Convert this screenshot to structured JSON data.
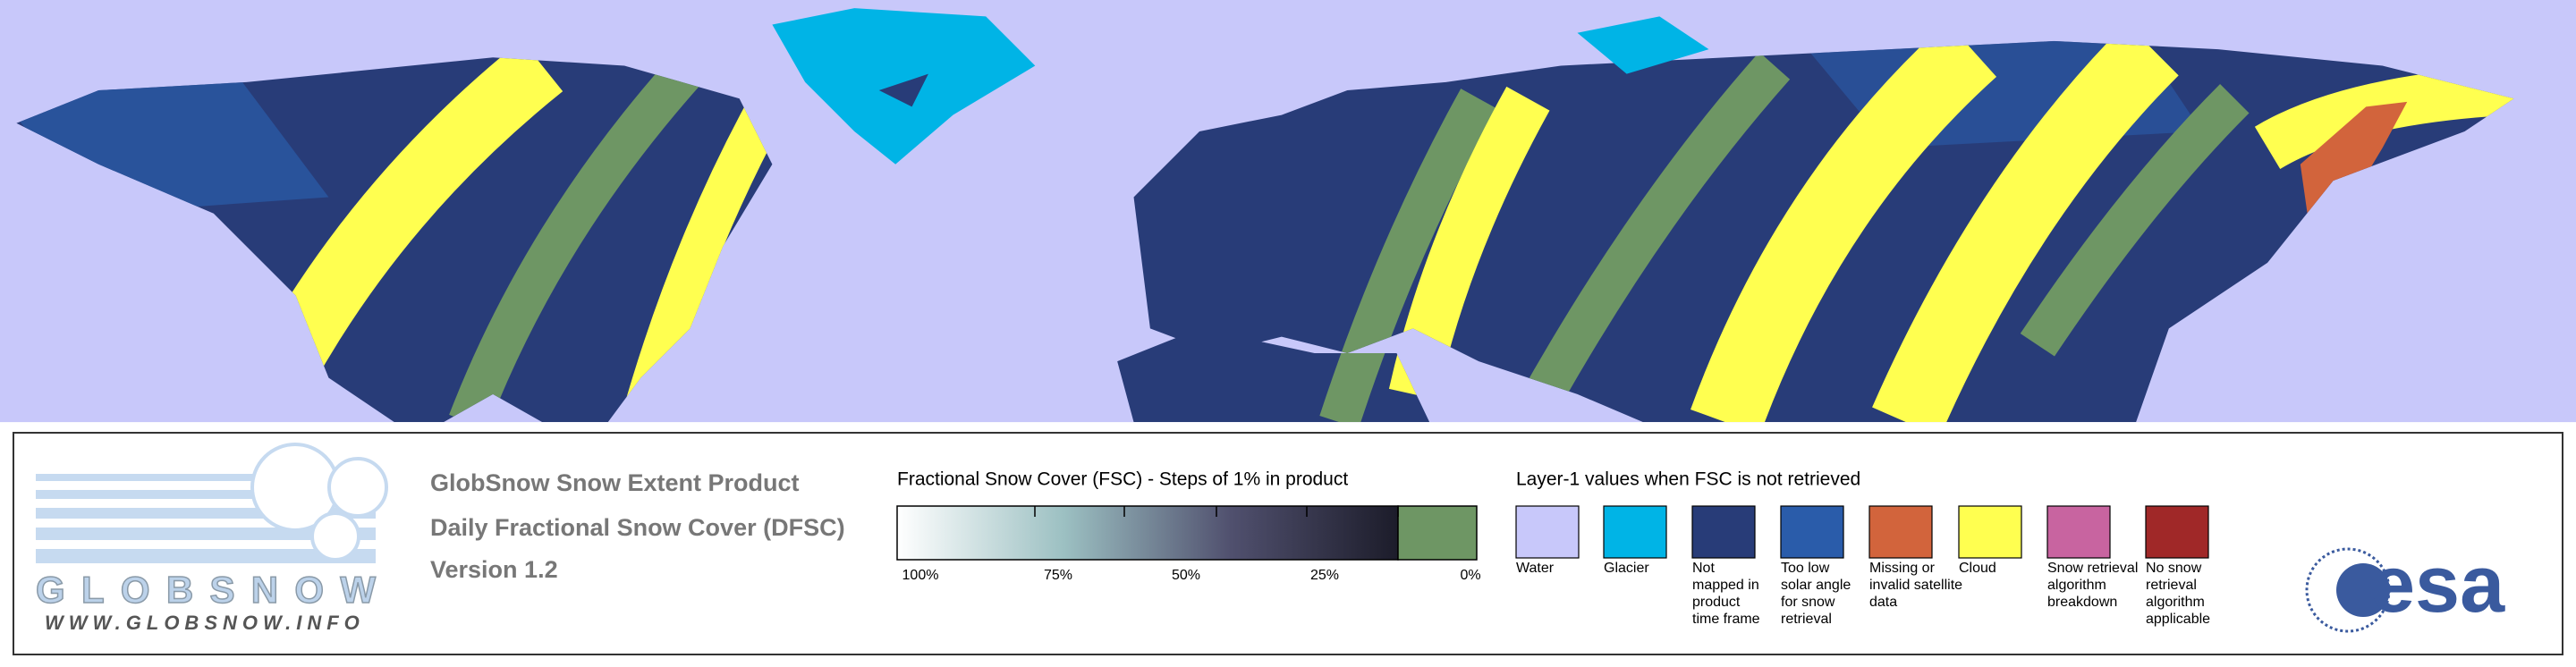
{
  "logo": {
    "name": "GLOBSNOW",
    "url": "WWW.GLOBSNOW.INFO"
  },
  "header": {
    "lines": [
      "GlobSnow Snow Extent Product",
      "Daily Fractional Snow Cover (DFSC)",
      "Version 1.2"
    ]
  },
  "fsc_legend": {
    "title": "Fractional Snow Cover (FSC) - Steps of 1% in product",
    "tick_labels": [
      "100%",
      "75%",
      "50%",
      "25%",
      "0%"
    ],
    "gradient_colors": [
      "#ffffff",
      "#9cc0c2",
      "#50506e",
      "#1c1c2a"
    ],
    "zero_color": "#6e9664"
  },
  "layer1_legend": {
    "title": "Layer-1 values when FSC is not retrieved",
    "items": [
      {
        "color": "#c8c8fa",
        "label_lines": [
          "Water"
        ]
      },
      {
        "color": "#00b4e6",
        "label_lines": [
          "Glacier"
        ]
      },
      {
        "color": "#283c78",
        "label_lines": [
          "Not",
          "mapped in",
          "product",
          "time frame"
        ]
      },
      {
        "color": "#2a5caa",
        "label_lines": [
          "Too low",
          "solar angle",
          "for snow",
          "retrieval"
        ]
      },
      {
        "color": "#d2643c",
        "label_lines": [
          "Missing or",
          "invalid satellite",
          "data"
        ]
      },
      {
        "color": "#ffff50",
        "label_lines": [
          "Cloud"
        ]
      },
      {
        "color": "#c864a0",
        "label_lines": [
          "Snow retrieval",
          "algorithm",
          "breakdown"
        ]
      },
      {
        "color": "#a02828",
        "label_lines": [
          "No snow",
          "retrieval",
          "algorithm",
          "applicable"
        ]
      }
    ]
  },
  "esa_logo": "esa"
}
